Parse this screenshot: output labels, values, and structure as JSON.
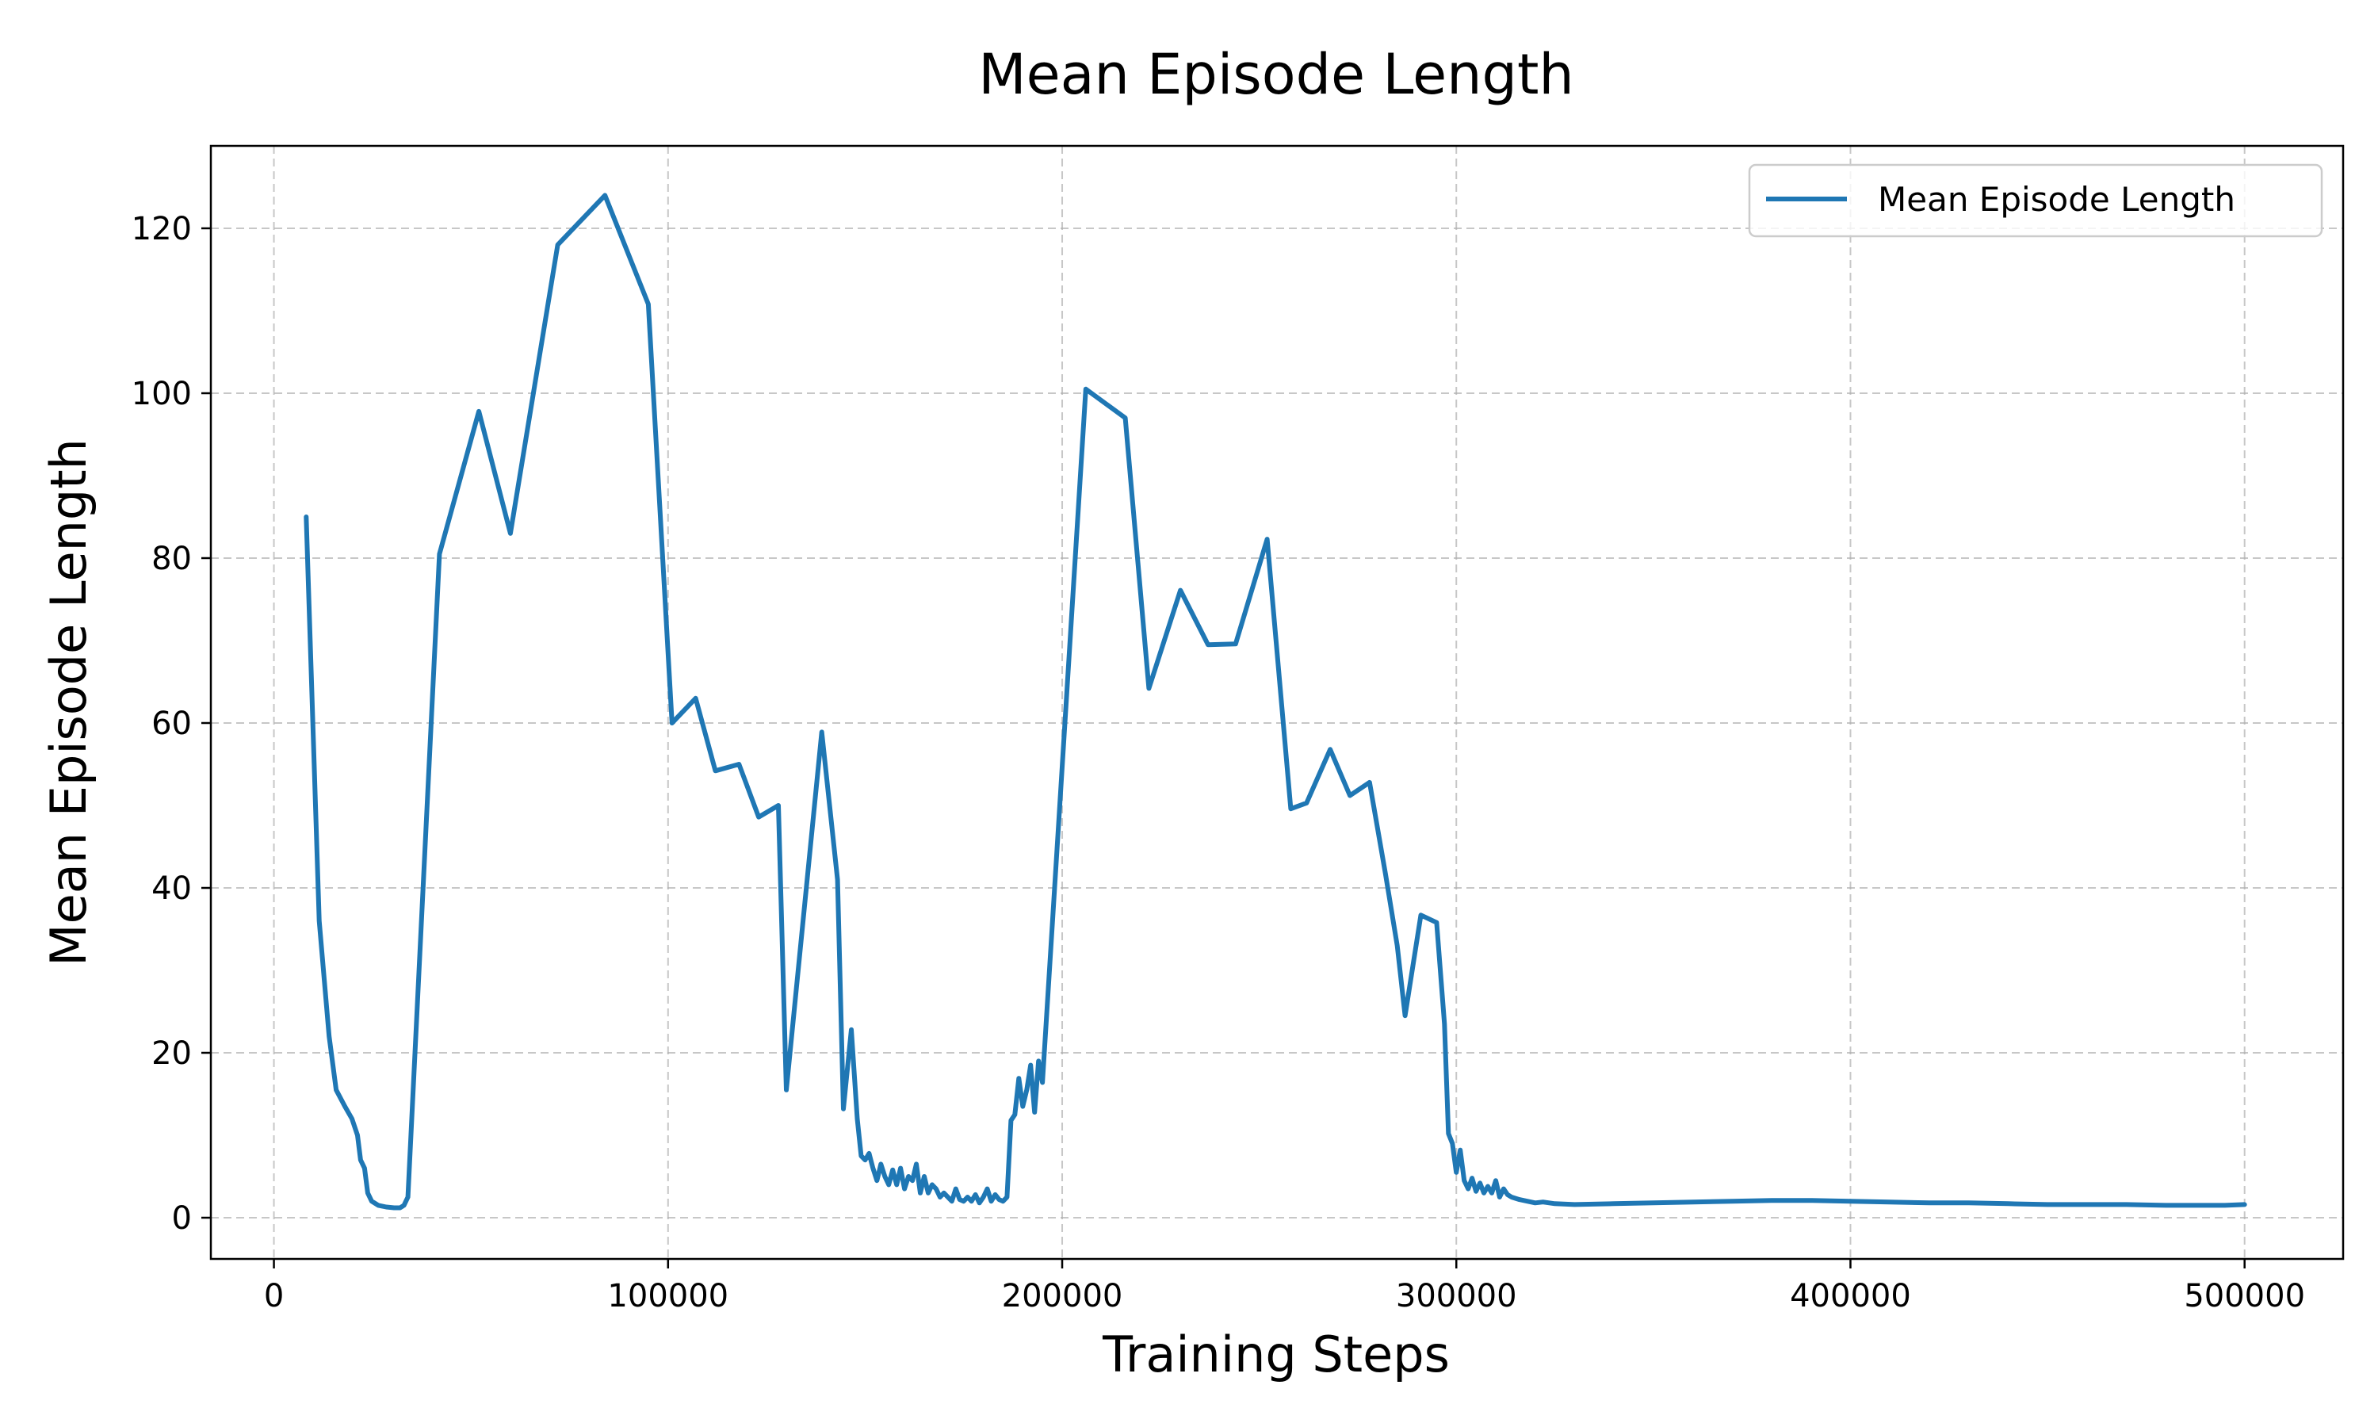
{
  "chart_data": {
    "type": "line",
    "title": "Mean Episode Length",
    "xlabel": "Training Steps",
    "ylabel": "Mean Episode Length",
    "xlim": [
      -16000,
      525000
    ],
    "ylim": [
      -5,
      130
    ],
    "xticks": [
      0,
      100000,
      200000,
      300000,
      400000,
      500000
    ],
    "yticks": [
      0,
      20,
      40,
      60,
      80,
      100,
      120
    ],
    "grid": true,
    "legend_position": "upper right",
    "series": [
      {
        "name": "Mean Episode Length",
        "color": "#1f77b4",
        "x": [
          8200,
          11500,
          14000,
          15800,
          18000,
          19800,
          21200,
          22000,
          23000,
          23800,
          24800,
          26500,
          28500,
          30500,
          32000,
          33000,
          34000,
          42000,
          52000,
          60000,
          72000,
          84000,
          95000,
          101000,
          107000,
          112000,
          118000,
          123000,
          128000,
          130000,
          139000,
          143000,
          144500,
          146500,
          148000,
          149000,
          150000,
          151000,
          152000,
          153000,
          154000,
          155000,
          156000,
          157000,
          158000,
          159000,
          160000,
          161000,
          162000,
          163000,
          164000,
          165000,
          166000,
          167000,
          168000,
          169000,
          170000,
          171000,
          172000,
          173000,
          174000,
          175000,
          176000,
          177000,
          178000,
          179000,
          180000,
          181000,
          182000,
          183000,
          184000,
          185000,
          186000,
          187000,
          188000,
          189000,
          190000,
          191000,
          192000,
          193000,
          194000,
          195000,
          206000,
          216000,
          222000,
          230000,
          237000,
          244000,
          252000,
          258000,
          262000,
          268000,
          273000,
          278000,
          282000,
          285000,
          287000,
          291000,
          295000,
          297000,
          298000,
          299000,
          300000,
          301000,
          302000,
          303000,
          304000,
          305000,
          306000,
          307000,
          308000,
          309000,
          310000,
          311000,
          312000,
          313000,
          314000,
          316000,
          318000,
          320000,
          322000,
          325000,
          330000,
          340000,
          350000,
          360000,
          370000,
          380000,
          390000,
          400000,
          410000,
          420000,
          430000,
          440000,
          450000,
          460000,
          470000,
          480000,
          490000,
          495000,
          500000
        ],
        "y": [
          85,
          36,
          22,
          15.5,
          13.5,
          12,
          10,
          7,
          6,
          3,
          2,
          1.5,
          1.3,
          1.2,
          1.2,
          1.5,
          2.5,
          80.5,
          97.8,
          83,
          118,
          124,
          110.8,
          60,
          63,
          54.2,
          55,
          48.6,
          50,
          15.5,
          58.9,
          41,
          13.2,
          22.8,
          12,
          7.5,
          7,
          7.8,
          6,
          4.5,
          6.5,
          5,
          4,
          5.8,
          4,
          6,
          3.5,
          5,
          4.5,
          6.5,
          3,
          5,
          3,
          4,
          3.5,
          2.5,
          3,
          2.5,
          2,
          3.5,
          2.2,
          2,
          2.5,
          2,
          2.8,
          1.8,
          2.5,
          3.5,
          2,
          2.8,
          2.2,
          2,
          2.5,
          11.8,
          12.5,
          16.9,
          13.5,
          15.5,
          18.5,
          12.8,
          19,
          16.4,
          100.5,
          97,
          64.2,
          76.1,
          69.5,
          69.6,
          82.3,
          49.6,
          50.3,
          56.8,
          51.2,
          52.8,
          41.8,
          33,
          24.5,
          36.7,
          35.8,
          23.5,
          10.2,
          9,
          5.5,
          8.2,
          4.5,
          3.5,
          4.8,
          3.2,
          4.2,
          3,
          3.8,
          3,
          4.5,
          2.5,
          3.5,
          2.8,
          2.5,
          2.2,
          2,
          1.8,
          1.9,
          1.7,
          1.6,
          1.7,
          1.8,
          1.9,
          2,
          2.1,
          2.1,
          2,
          1.9,
          1.8,
          1.8,
          1.7,
          1.6,
          1.6,
          1.6,
          1.5,
          1.5,
          1.5,
          1.6
        ]
      }
    ]
  }
}
